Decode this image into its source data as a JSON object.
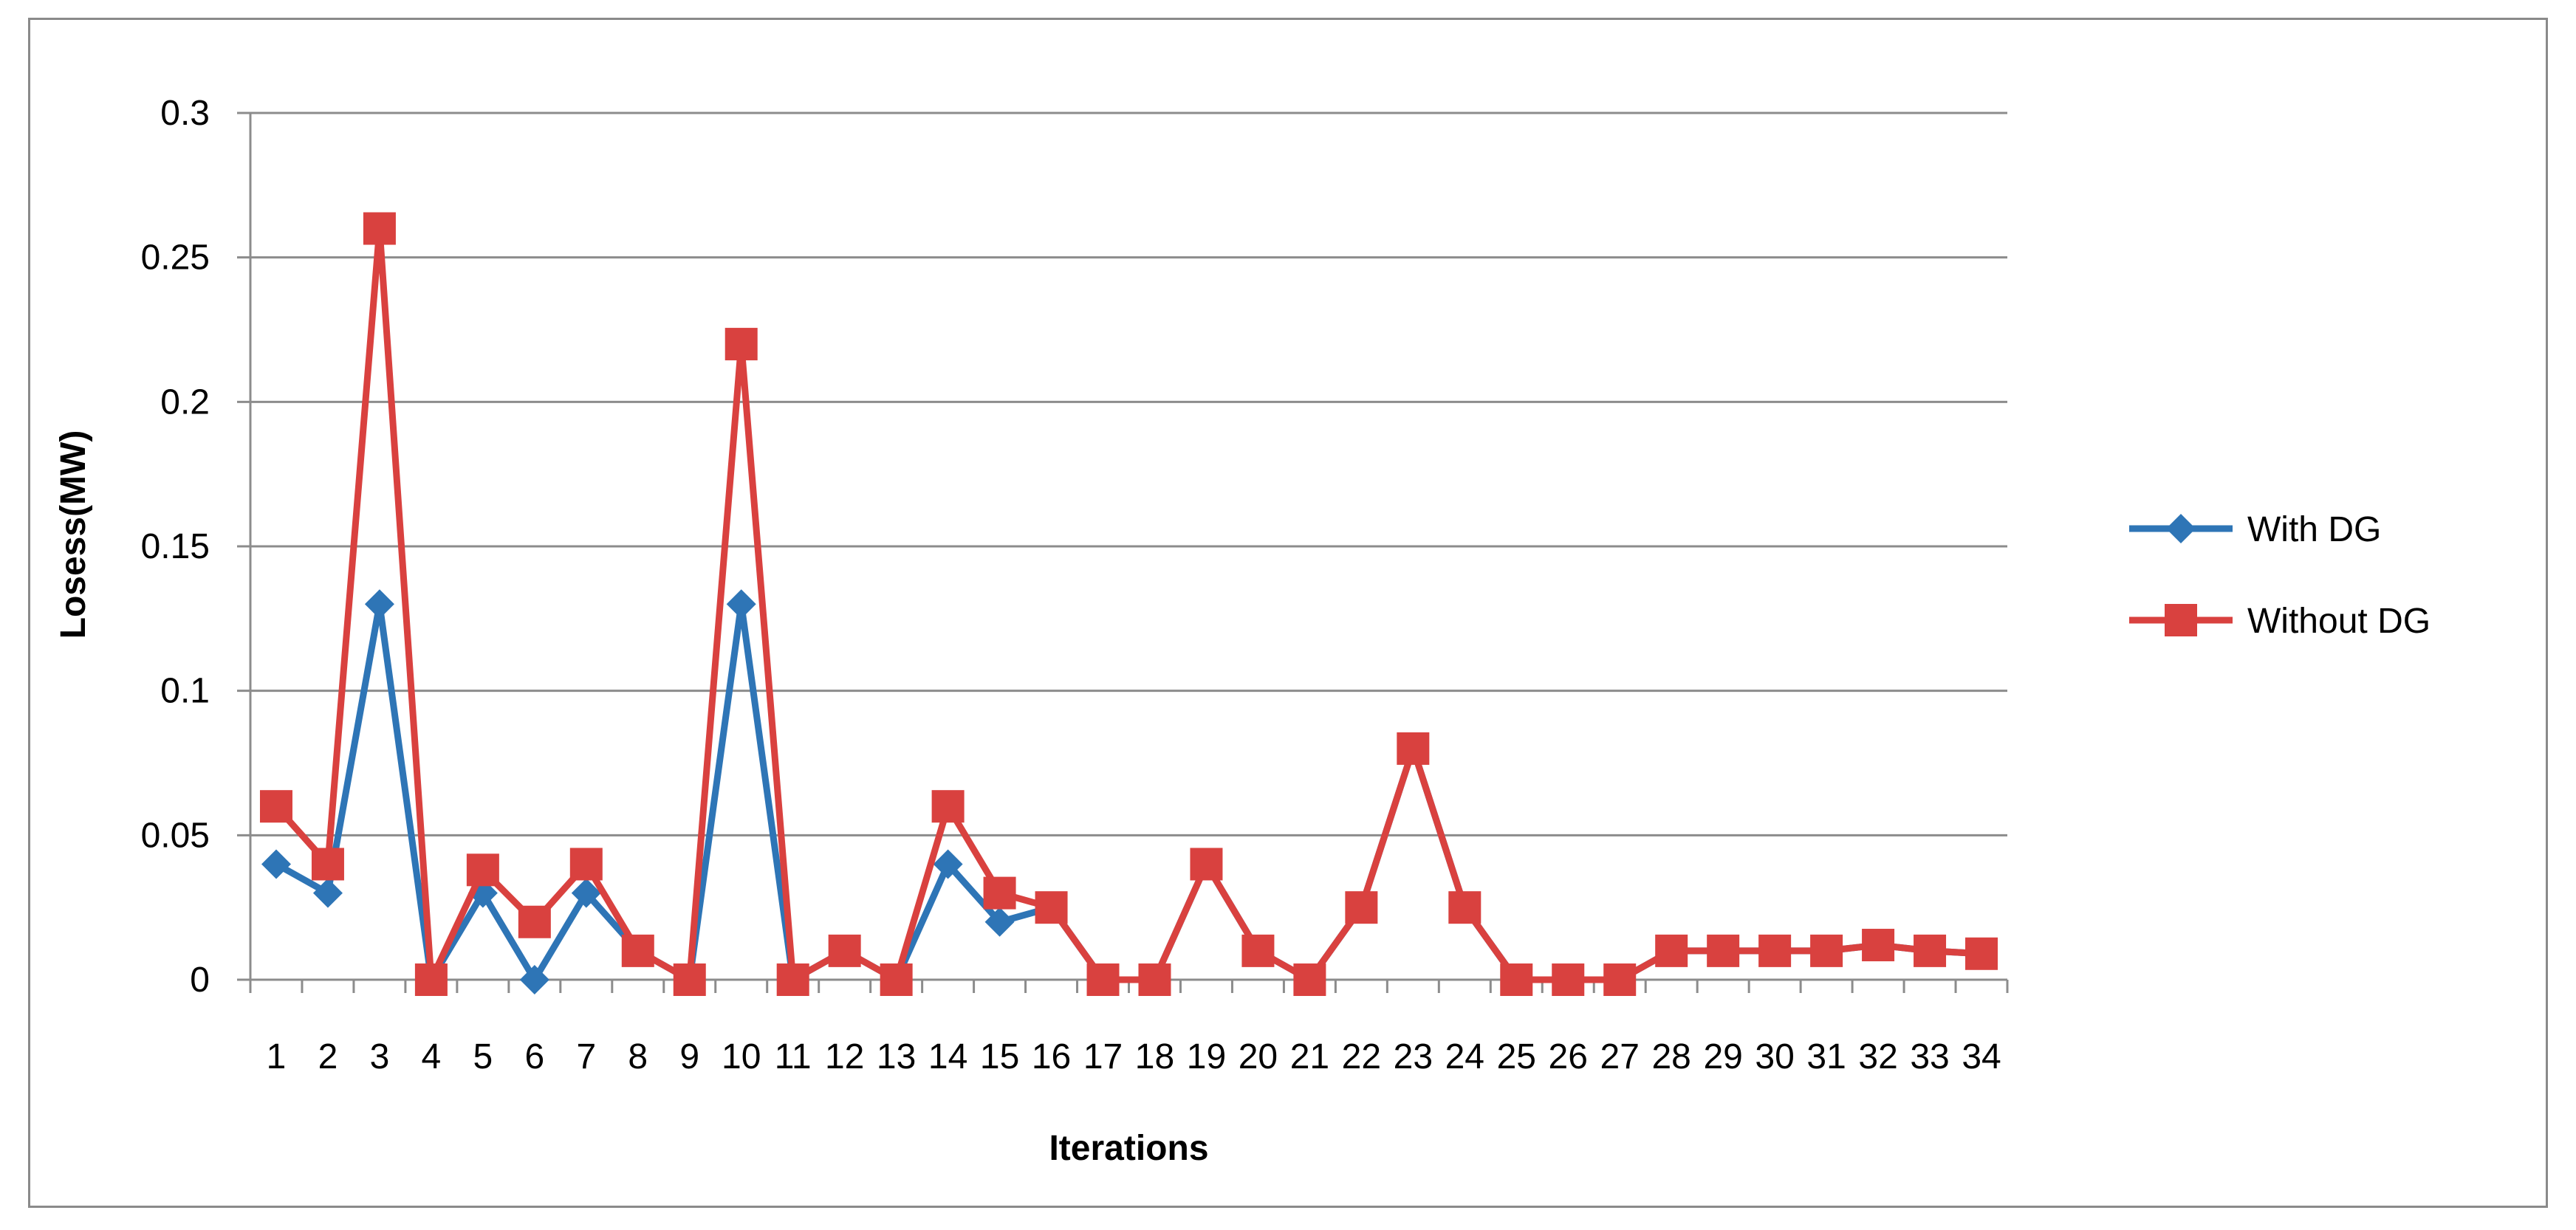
{
  "chart_data": {
    "type": "line",
    "title": "",
    "xlabel": "Iterations",
    "ylabel": "Losess(MW)",
    "ylim": [
      0,
      0.3
    ],
    "y_ticks": [
      "0",
      "0.05",
      "0.1",
      "0.15",
      "0.2",
      "0.25",
      "0.3"
    ],
    "y_tick_values": [
      0,
      0.05,
      0.1,
      0.15,
      0.2,
      0.25,
      0.3
    ],
    "grid": "horizontal",
    "legend_position": "right",
    "x": [
      "1",
      "2",
      "3",
      "4",
      "5",
      "6",
      "7",
      "8",
      "9",
      "10",
      "11",
      "12",
      "13",
      "14",
      "15",
      "16",
      "17",
      "18",
      "19",
      "20",
      "21",
      "22",
      "23",
      "24",
      "25",
      "26",
      "27",
      "28",
      "29",
      "30",
      "31",
      "32",
      "33",
      "34"
    ],
    "series": [
      {
        "name": "With DG",
        "color": "#2E75B6",
        "marker": "diamond",
        "values": [
          0.04,
          0.03,
          0.13,
          0,
          0.03,
          0,
          0.03,
          0.01,
          0,
          0.13,
          0,
          0.01,
          0,
          0.04,
          0.02,
          0.025,
          0,
          0,
          0.04,
          0.01,
          0,
          0.025,
          0.08,
          0.025,
          0,
          0,
          0,
          0.01,
          0.01,
          0.01,
          0.01,
          0.012,
          0.01,
          0.009
        ]
      },
      {
        "name": "Without DG",
        "color": "#D9413F",
        "marker": "square",
        "values": [
          0.06,
          0.04,
          0.26,
          0,
          0.038,
          0.02,
          0.04,
          0.01,
          0,
          0.22,
          0,
          0.01,
          0,
          0.06,
          0.03,
          0.025,
          0,
          0,
          0.04,
          0.01,
          0,
          0.025,
          0.08,
          0.025,
          0,
          0,
          0,
          0.01,
          0.01,
          0.01,
          0.01,
          0.012,
          0.01,
          0.009
        ]
      }
    ]
  }
}
